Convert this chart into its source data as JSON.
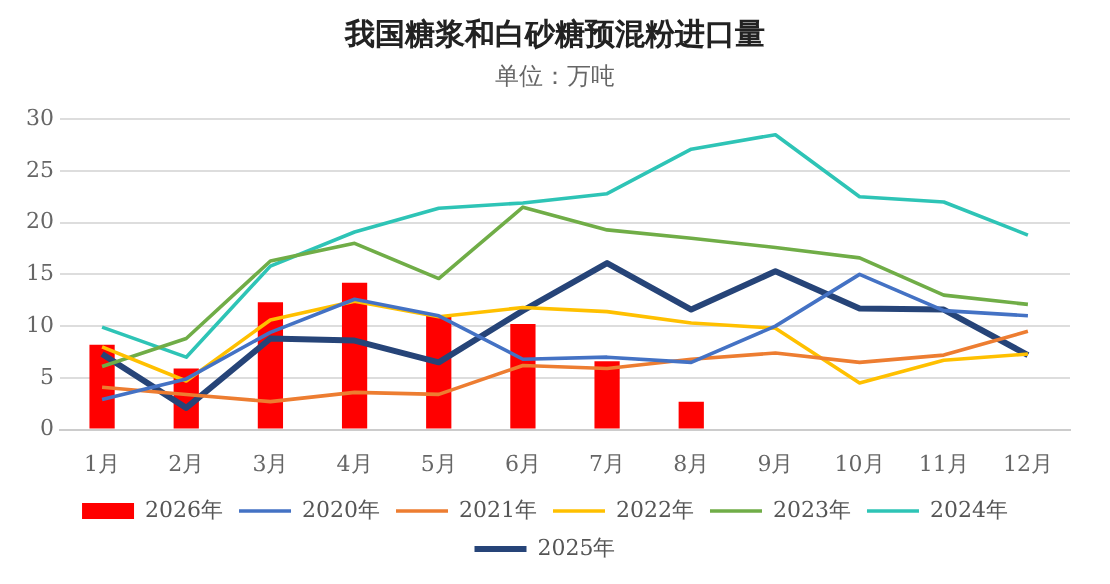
{
  "chart_data": {
    "type": "line",
    "title": "我国糖浆和白砂糖预混粉进口量",
    "subtitle": "单位：万吨",
    "categories": [
      "1月",
      "2月",
      "3月",
      "4月",
      "5月",
      "6月",
      "7月",
      "8月",
      "9月",
      "10月",
      "11月",
      "12月"
    ],
    "series": [
      {
        "name": "2026年",
        "type": "bar",
        "color": "#ff0000",
        "values": [
          8.2,
          5.9,
          12.3,
          14.2,
          11,
          10.2,
          6.6,
          2.7,
          null,
          null,
          null,
          null
        ]
      },
      {
        "name": "2020年",
        "color": "#4472c4",
        "values": [
          2.9,
          4.9,
          9.4,
          12.6,
          11,
          6.8,
          7,
          6.5,
          10,
          15,
          11.5,
          11
        ]
      },
      {
        "name": "2021年",
        "color": "#ed7d31",
        "values": [
          4.1,
          3.4,
          2.7,
          3.6,
          3.4,
          6.2,
          5.9,
          6.8,
          7.4,
          6.5,
          7.2,
          9.5
        ]
      },
      {
        "name": "2022年",
        "color": "#ffc000",
        "values": [
          8,
          4.7,
          10.6,
          12.4,
          10.9,
          11.8,
          11.4,
          10.3,
          9.8,
          4.5,
          6.7,
          7.3
        ]
      },
      {
        "name": "2023年",
        "color": "#70ad47",
        "values": [
          6.1,
          8.8,
          16.3,
          18,
          14.6,
          21.5,
          19.3,
          18.5,
          17.6,
          16.6,
          13,
          12.1
        ]
      },
      {
        "name": "2024年",
        "color": "#2ec4b6",
        "values": [
          9.9,
          7,
          15.8,
          19.1,
          21.4,
          21.9,
          22.8,
          27.1,
          28.5,
          22.5,
          22,
          18.8
        ]
      },
      {
        "name": "2025年",
        "color": "#264478",
        "values": [
          7.3,
          2.1,
          8.8,
          8.6,
          6.5,
          11.5,
          16.1,
          11.6,
          15.3,
          11.7,
          11.6,
          7.2
        ]
      }
    ],
    "ylim": [
      0,
      30
    ],
    "yticks": [
      0,
      5,
      10,
      15,
      20,
      25,
      30
    ],
    "grid": "y",
    "legend": "bottom",
    "marker": "none",
    "line_style": "solid"
  }
}
